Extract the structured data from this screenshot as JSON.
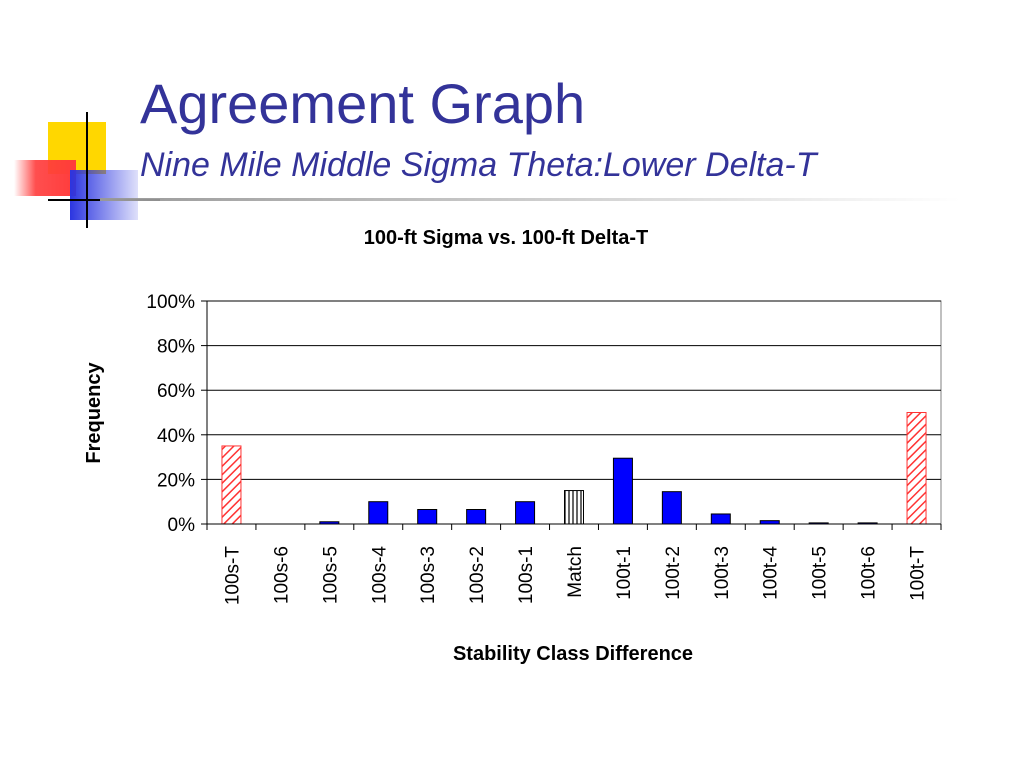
{
  "slide": {
    "title": "Agreement Graph",
    "subtitle": "Nine Mile Middle Sigma Theta:Lower Delta-T"
  },
  "colors": {
    "title": "#333399",
    "bar_fill": "#0000ff",
    "hatch_red": "#ff3333",
    "hatch_black": "#000000",
    "decor_yellow": "#ffd700",
    "decor_red": "#ff3b3b",
    "decor_blue": "#2b35e0"
  },
  "chart_data": {
    "type": "bar",
    "title": "100-ft Sigma vs. 100-ft Delta-T",
    "xlabel": "Stability Class Difference",
    "ylabel": "Frequency",
    "ylim": [
      0,
      100
    ],
    "yticks": [
      "0%",
      "20%",
      "40%",
      "60%",
      "80%",
      "100%"
    ],
    "grid": true,
    "legend": "none",
    "categories": [
      "100s-T",
      "100s-6",
      "100s-5",
      "100s-4",
      "100s-3",
      "100s-2",
      "100s-1",
      "Match",
      "100t-1",
      "100t-2",
      "100t-3",
      "100t-4",
      "100t-5",
      "100t-6",
      "100t-T"
    ],
    "values": [
      35,
      0,
      1,
      10,
      6.5,
      6.5,
      10,
      15,
      29.5,
      14.5,
      4.5,
      1.5,
      0.5,
      0.5,
      50
    ],
    "styles": [
      "red-hatch",
      "solid",
      "solid",
      "solid",
      "solid",
      "solid",
      "solid",
      "black-vertical-hatch",
      "solid",
      "solid",
      "solid",
      "solid",
      "solid",
      "solid",
      "red-hatch"
    ]
  }
}
